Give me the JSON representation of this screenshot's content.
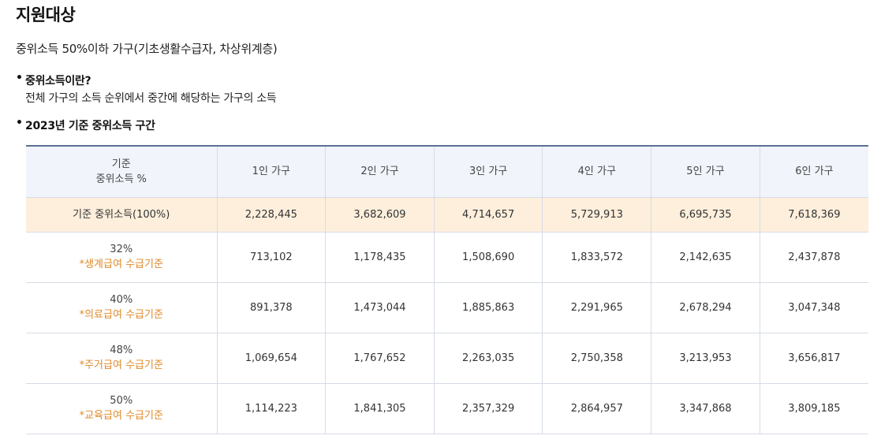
{
  "title": "지원대상",
  "target_text": "중위소득 50%이하 가구(기초생활수급자, 차상위계층)",
  "bullets": [
    {
      "head": "중위소득이란?",
      "desc": "전체 가구의 소득 순위에서 중간에 해당하는 가구의 소득"
    },
    {
      "head": "2023년 기준 중위소득 구간",
      "desc": ""
    }
  ],
  "table": {
    "header": {
      "corner_line1": "기준",
      "corner_line2": "중위소득 %",
      "cols": [
        "1인 가구",
        "2인 가구",
        "3인 가구",
        "4인 가구",
        "5인 가구",
        "6인 가구"
      ]
    },
    "base_row": {
      "label": "기준 중위소득(100%)",
      "values": [
        "2,228,445",
        "3,682,609",
        "4,714,657",
        "5,729,913",
        "6,695,735",
        "7,618,369"
      ]
    },
    "rows": [
      {
        "pct": "32%",
        "note": "*생계급여 수급기준",
        "values": [
          "713,102",
          "1,178,435",
          "1,508,690",
          "1,833,572",
          "2,142,635",
          "2,437,878"
        ]
      },
      {
        "pct": "40%",
        "note": "*의료급여 수급기준",
        "values": [
          "891,378",
          "1,473,044",
          "1,885,863",
          "2,291,965",
          "2,678,294",
          "3,047,348"
        ]
      },
      {
        "pct": "48%",
        "note": "*주거급여 수급기준",
        "values": [
          "1,069,654",
          "1,767,652",
          "2,263,035",
          "2,750,358",
          "3,213,953",
          "3,656,817"
        ]
      },
      {
        "pct": "50%",
        "note": "*교육급여 수급기준",
        "values": [
          "1,114,223",
          "1,841,305",
          "2,357,329",
          "2,864,957",
          "3,347,868",
          "3,809,185"
        ]
      }
    ]
  },
  "colors": {
    "header_bg": "#f1f4fa",
    "base_row_bg": "#fdefdc",
    "note_orange": "#e08a2a",
    "header_border": "#5b6f95"
  }
}
